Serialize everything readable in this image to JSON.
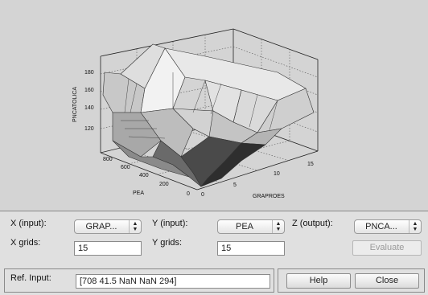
{
  "plot": {
    "z_label": "PNCATOLICA",
    "x_label": "GRAPROES",
    "y_label": "PEA",
    "z_ticks": [
      "180",
      "160",
      "140",
      "120"
    ],
    "x_ticks": [
      "0",
      "5",
      "10",
      "15"
    ],
    "y_ticks": [
      "800",
      "600",
      "400",
      "200",
      "0"
    ],
    "colors": {
      "background": "#d4d4d4",
      "surface_light": "#e6e6e6",
      "surface_dark": "#3a3a3a"
    }
  },
  "controls": {
    "x_input_label": "X (input):",
    "x_input_value": "GRAP...",
    "y_input_label": "Y (input):",
    "y_input_value": "PEA",
    "z_output_label": "Z (output):",
    "z_output_value": "PNCA...",
    "x_grids_label": "X grids:",
    "x_grids_value": "15",
    "y_grids_label": "Y grids:",
    "y_grids_value": "15",
    "evaluate_label": "Evaluate",
    "ref_input_label": "Ref. Input:",
    "ref_input_value": "[708 41.5 NaN NaN 294]",
    "help_label": "Help",
    "close_label": "Close",
    "arrow_up_icon": "▲",
    "arrow_down_icon": "▼"
  }
}
